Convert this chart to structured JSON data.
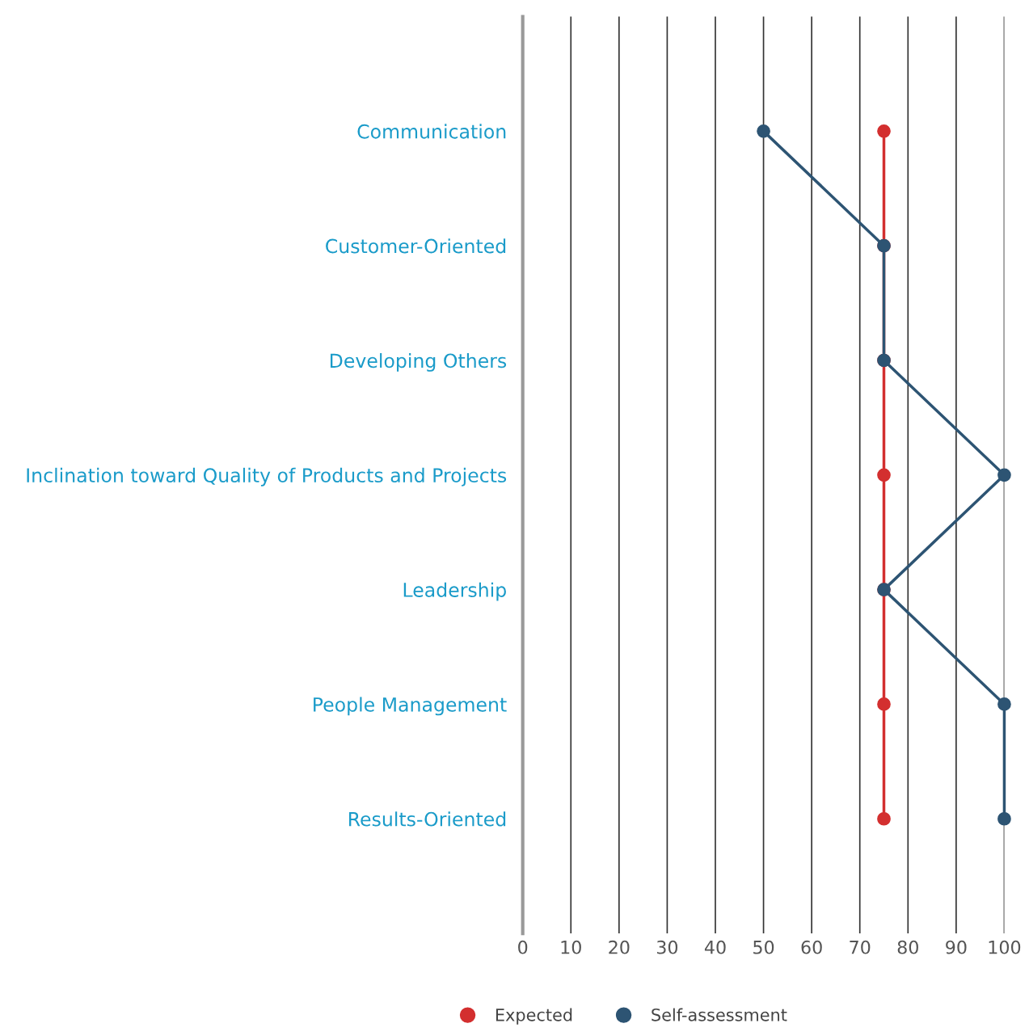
{
  "chart_data": {
    "type": "line",
    "orientation": "horizontal",
    "categories": [
      "Communication",
      "Customer-Oriented",
      "Developing Others",
      "Inclination toward Quality of Products and Projects",
      "Leadership",
      "People Management",
      "Results-Oriented"
    ],
    "series": [
      {
        "name": "Expected",
        "color": "#d32f2f",
        "values": [
          75,
          75,
          75,
          75,
          75,
          75,
          75
        ]
      },
      {
        "name": "Self-assessment",
        "color": "#2d5473",
        "values": [
          50,
          75,
          75,
          100,
          75,
          100,
          100
        ]
      }
    ],
    "xlim": [
      0,
      100
    ],
    "xticks": [
      0,
      10,
      20,
      30,
      40,
      50,
      60,
      70,
      80,
      90,
      100
    ],
    "grid": "x",
    "marker": "circle",
    "line_style": "solid",
    "legend": "bottom"
  }
}
